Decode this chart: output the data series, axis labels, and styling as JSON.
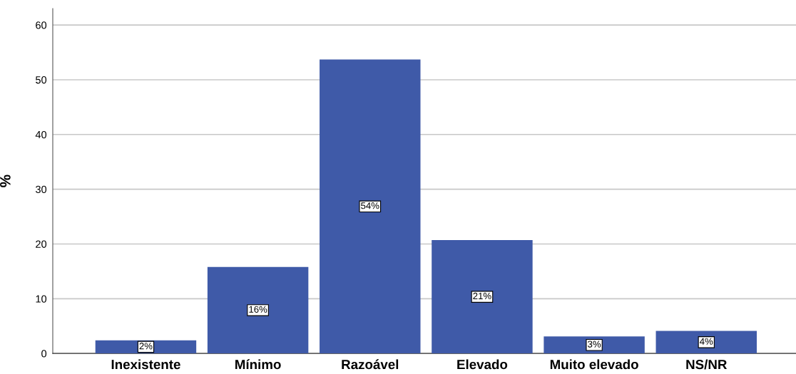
{
  "chart_data": {
    "type": "bar",
    "ylabel": "%",
    "categories": [
      "Inexistente",
      "Mínimo",
      "Razoável",
      "Elevado",
      "Muito elevado",
      "NS/NR"
    ],
    "values": [
      2.4,
      15.8,
      53.7,
      20.7,
      3.1,
      4.1
    ],
    "value_labels": [
      "2%",
      "16%",
      "54%",
      "21%",
      "3%",
      "4%"
    ],
    "color": "#3f5aa8",
    "ylim": [
      0,
      63
    ],
    "yticks": [
      0,
      10,
      20,
      30,
      40,
      50,
      60
    ],
    "grid": "y",
    "legend": false
  }
}
